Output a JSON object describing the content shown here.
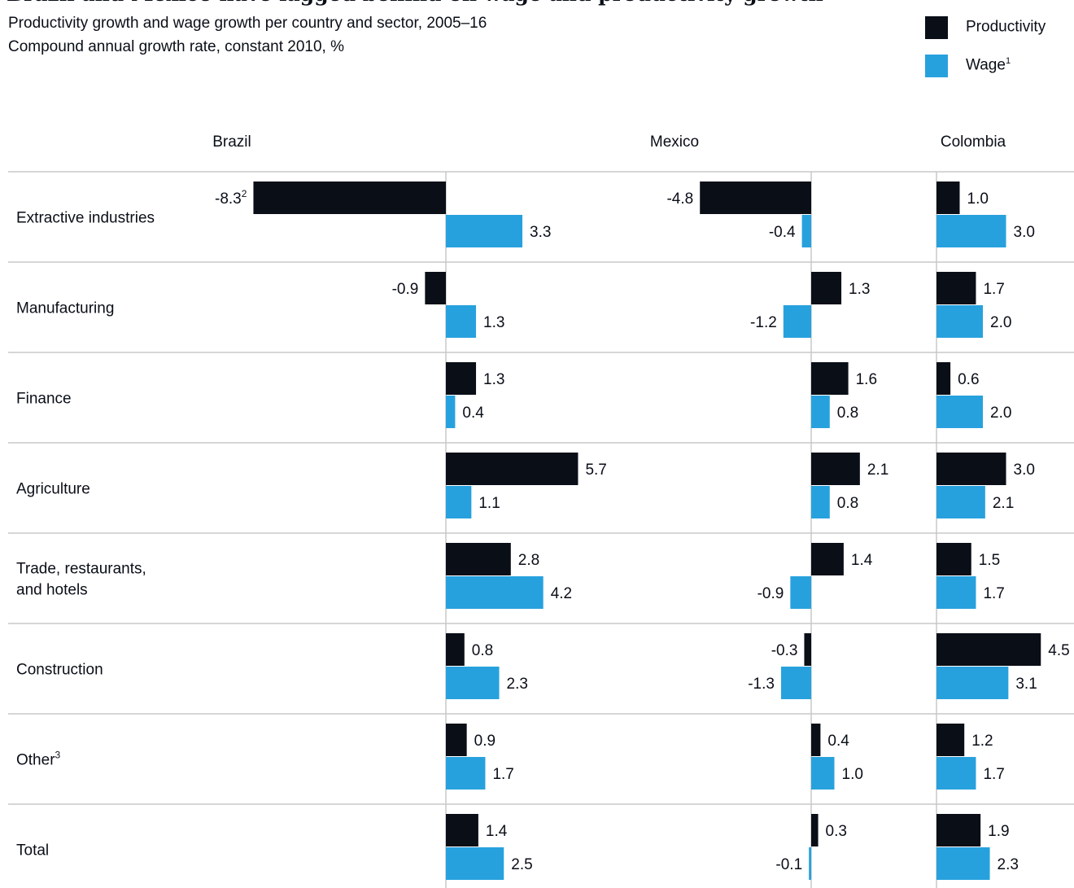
{
  "header": {
    "title": "Brazil and Mexico have lagged behind on wage and productivity growth",
    "subtitle_line1": "Productivity growth and wage growth per country and sector, 2005–16",
    "subtitle_line2": "Compound annual growth rate, constant 2010, %"
  },
  "legend": [
    {
      "label": "Productivity",
      "sup": "",
      "color": "#0a0e17"
    },
    {
      "label": "Wage",
      "sup": "1",
      "color": "#27a1dd"
    }
  ],
  "chart_data": {
    "type": "bar",
    "orientation": "horizontal",
    "grid": false,
    "countries": [
      "Brazil",
      "Mexico",
      "Colombia"
    ],
    "categories": [
      {
        "label": "Extractive industries",
        "sup": ""
      },
      {
        "label": "Manufacturing",
        "sup": ""
      },
      {
        "label": "Finance",
        "sup": ""
      },
      {
        "label": "Agriculture",
        "sup": ""
      },
      {
        "label": "Trade, restaurants, and hotels",
        "sup": ""
      },
      {
        "label": "Construction",
        "sup": ""
      },
      {
        "label": "Other",
        "sup": "3"
      },
      {
        "label": "Total",
        "sup": ""
      }
    ],
    "series": [
      {
        "name": "Productivity",
        "color": "#0a0e17",
        "values": {
          "Brazil": [
            -8.3,
            -0.9,
            1.3,
            5.7,
            2.8,
            0.8,
            0.9,
            1.4
          ],
          "Mexico": [
            -4.8,
            1.3,
            1.6,
            2.1,
            1.4,
            -0.3,
            0.4,
            0.3
          ],
          "Colombia": [
            1.0,
            1.7,
            0.6,
            3.0,
            1.5,
            4.5,
            1.2,
            1.9
          ]
        },
        "label_sup": {
          "Brazil": [
            "2",
            "",
            "",
            "",
            "",
            "",
            "",
            ""
          ]
        }
      },
      {
        "name": "Wage",
        "color": "#27a1dd",
        "values": {
          "Brazil": [
            3.3,
            1.3,
            0.4,
            1.1,
            4.2,
            2.3,
            1.7,
            2.5
          ],
          "Mexico": [
            -0.4,
            -1.2,
            0.8,
            0.8,
            -0.9,
            -1.3,
            1.0,
            -0.1
          ],
          "Colombia": [
            3.0,
            2.0,
            2.0,
            2.1,
            1.7,
            3.1,
            1.7,
            2.3
          ]
        }
      }
    ]
  }
}
